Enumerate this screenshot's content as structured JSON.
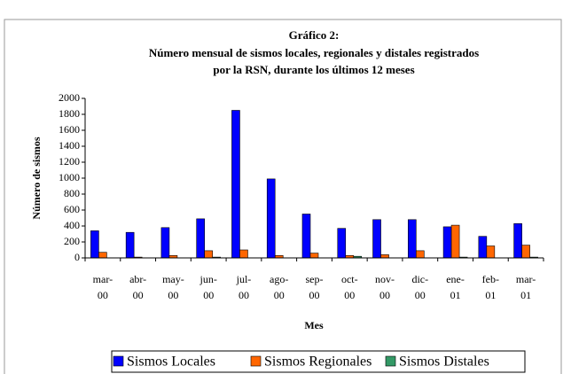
{
  "chart_data": {
    "type": "bar",
    "title": "Gráfico 2:",
    "subtitle": [
      "Número mensual de sismos locales, regionales y distales registrados",
      "por la RSN, durante los últimos 12 meses"
    ],
    "x_label": "Mes",
    "y_label": "Número de sismos",
    "categories": [
      "mar-00",
      "abr-00",
      "may-00",
      "jun-00",
      "jul-00",
      "ago-00",
      "sep-00",
      "oct-00",
      "nov-00",
      "dic-00",
      "ene-01",
      "feb-01",
      "mar-01"
    ],
    "series": [
      {
        "name": "Sismos Locales",
        "color": "#0000ff",
        "values": [
          340,
          320,
          380,
          490,
          1850,
          990,
          550,
          370,
          480,
          480,
          390,
          270,
          430
        ]
      },
      {
        "name": "Sismos Regionales",
        "color": "#ff6600",
        "values": [
          70,
          10,
          30,
          90,
          100,
          30,
          60,
          30,
          40,
          90,
          410,
          150,
          160
        ]
      },
      {
        "name": "Sismos Distales",
        "color": "#339966",
        "values": [
          0,
          0,
          0,
          10,
          0,
          0,
          0,
          20,
          0,
          0,
          10,
          0,
          10
        ]
      }
    ],
    "ylim": [
      0,
      2000
    ],
    "yticks": [
      0,
      200,
      400,
      600,
      800,
      1000,
      1200,
      1400,
      1600,
      1800,
      2000
    ]
  }
}
